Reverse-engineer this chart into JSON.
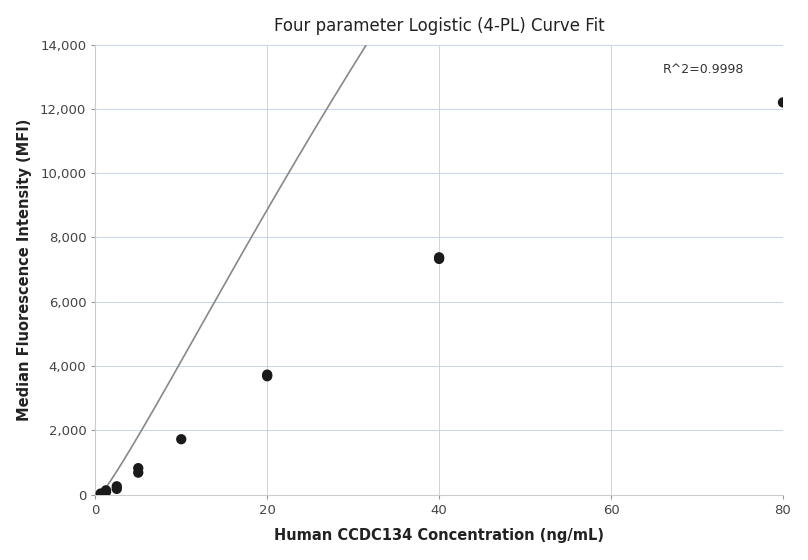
{
  "title": "Four parameter Logistic (4-PL) Curve Fit",
  "xlabel": "Human CCDC134 Concentration (ng/mL)",
  "ylabel": "Median Fluorescence Intensity (MFI)",
  "scatter_x": [
    0.625,
    1.25,
    1.25,
    2.5,
    2.5,
    5.0,
    5.0,
    10.0,
    20.0,
    20.0,
    40.0,
    40.0,
    80.0
  ],
  "scatter_y": [
    30,
    80,
    130,
    175,
    255,
    680,
    820,
    1720,
    3680,
    3730,
    7330,
    7380,
    12200
  ],
  "r_squared": "R^2=0.9998",
  "xlim": [
    0,
    80
  ],
  "ylim": [
    0,
    14000
  ],
  "yticks": [
    0,
    2000,
    4000,
    6000,
    8000,
    10000,
    12000,
    14000
  ],
  "xticks": [
    0,
    20,
    40,
    60,
    80
  ],
  "dot_color": "#1a1a1a",
  "dot_size": 55,
  "line_color": "#888888",
  "line_width": 1.2,
  "background_color": "#ffffff",
  "grid_color": "#c8d4e8",
  "title_fontsize": 12,
  "label_fontsize": 10.5,
  "tick_fontsize": 9.5,
  "4pl_A": -200,
  "4pl_B": 1.15,
  "4pl_C": 120,
  "4pl_D": 80000
}
